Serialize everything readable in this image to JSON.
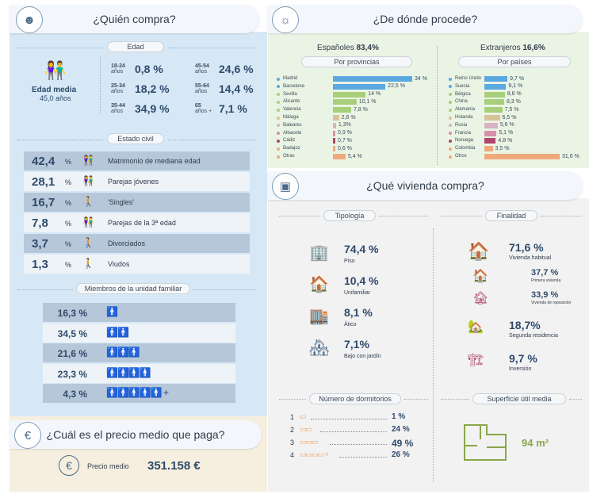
{
  "quien": {
    "title": "¿Quién compra?",
    "edad_tag": "Edad",
    "edad_media_label": "Edad media",
    "edad_media_value": "45,0 años",
    "edad_groups": [
      {
        "top": "18-24",
        "bottom": "años",
        "value": "0,8 %"
      },
      {
        "top": "25-34",
        "bottom": "años",
        "value": "18,2 %"
      },
      {
        "top": "35-44",
        "bottom": "años",
        "value": "34,9 %"
      },
      {
        "top": "45-54",
        "bottom": "años",
        "value": "24,6 %"
      },
      {
        "top": "55-64",
        "bottom": "años",
        "value": "14,4 %"
      },
      {
        "top": "65",
        "bottom": "años +",
        "value": "7,1 %"
      }
    ],
    "estado_tag": "Estado civil",
    "estado": [
      {
        "value": "42,4",
        "pct": "%",
        "label": "Matrimonio de mediana edad"
      },
      {
        "value": "28,1",
        "pct": "%",
        "label": "Parejas jóvenes"
      },
      {
        "value": "16,7",
        "pct": "%",
        "label": "'Singles'"
      },
      {
        "value": "7,8",
        "pct": "%",
        "label": "Parejas de la 3ª edad"
      },
      {
        "value": "3,7",
        "pct": "%",
        "label": "Divorciados"
      },
      {
        "value": "1,3",
        "pct": "%",
        "label": "Viudos"
      }
    ],
    "miembros_tag": "Miembros de la unidad familiar",
    "miembros": [
      {
        "value": "16,3 %",
        "people": "1"
      },
      {
        "value": "34,5 %",
        "people": "2"
      },
      {
        "value": "21,6 %",
        "people": "3"
      },
      {
        "value": "23,3 %",
        "people": "4"
      },
      {
        "value": "4,3 %",
        "people": "5+"
      }
    ]
  },
  "precio": {
    "title": "¿Cuál es el precio medio que paga?",
    "label": "Precio medio",
    "value": "351.158 €"
  },
  "procede": {
    "title": "¿De dónde procede?",
    "espanoles_label": "Españoles",
    "espanoles_value": "83,4%",
    "extranjeros_label": "Extranjeros",
    "extranjeros_value": "16,6%",
    "provincias_tag": "Por provincias",
    "paises_tag": "Por países",
    "provincias": [
      {
        "name": "Madrid",
        "value": "34 %",
        "num": 34,
        "color": "#5aa9e0"
      },
      {
        "name": "Barcelona",
        "value": "22,5 %",
        "num": 22.5,
        "color": "#5aa9e0"
      },
      {
        "name": "Sevilla",
        "value": "14 %",
        "num": 14,
        "color": "#a7cf7a"
      },
      {
        "name": "Alicante",
        "value": "10,1 %",
        "num": 10.1,
        "color": "#a7cf7a"
      },
      {
        "name": "Valencia",
        "value": "7,8 %",
        "num": 7.8,
        "color": "#a7cf7a"
      },
      {
        "name": "Málaga",
        "value": "2,6 %",
        "num": 2.6,
        "color": "#d7c39a"
      },
      {
        "name": "Baleares",
        "value": "1,3%",
        "num": 1.3,
        "color": "#d9b3c4"
      },
      {
        "name": "Albacete",
        "value": "0,9 %",
        "num": 0.9,
        "color": "#d98fa9"
      },
      {
        "name": "Cádiz",
        "value": "0,7 %",
        "num": 0.7,
        "color": "#b0456b"
      },
      {
        "name": "Badajoz",
        "value": "0,6 %",
        "num": 0.6,
        "color": "#f0a97a"
      },
      {
        "name": "Otras",
        "value": "5,4 %",
        "num": 5.4,
        "color": "#f0a97a"
      }
    ],
    "paises": [
      {
        "name": "Reino Unido",
        "value": "9,7 %",
        "num": 9.7,
        "color": "#5aa9e0"
      },
      {
        "name": "Suecia",
        "value": "9,1 %",
        "num": 9.1,
        "color": "#5aa9e0"
      },
      {
        "name": "Bélgica",
        "value": "8,6 %",
        "num": 8.6,
        "color": "#a7cf7a"
      },
      {
        "name": "China",
        "value": "8,3 %",
        "num": 8.3,
        "color": "#a7cf7a"
      },
      {
        "name": "Alemania",
        "value": "7,5 %",
        "num": 7.5,
        "color": "#a7cf7a"
      },
      {
        "name": "Holanda",
        "value": "6,5 %",
        "num": 6.5,
        "color": "#d7c39a"
      },
      {
        "name": "Rusia",
        "value": "5,6 %",
        "num": 5.6,
        "color": "#d9b3c4"
      },
      {
        "name": "Francia",
        "value": "5,1 %",
        "num": 5.1,
        "color": "#d98fa9"
      },
      {
        "name": "Noruega",
        "value": "4,8 %",
        "num": 4.8,
        "color": "#b0456b"
      },
      {
        "name": "Colombia",
        "value": "3,5 %",
        "num": 3.5,
        "color": "#f0a97a"
      },
      {
        "name": "Otros",
        "value": "31,6 %",
        "num": 31.6,
        "color": "#f0a97a"
      }
    ]
  },
  "vivienda": {
    "title": "¿Qué vivienda compra?",
    "tipologia_tag": "Tipología",
    "finalidad_tag": "Finalidad",
    "tipologia": [
      {
        "value": "74,4 %",
        "label": "Piso"
      },
      {
        "value": "10,4 %",
        "label": "Unifamiliar"
      },
      {
        "value": "8,1 %",
        "label": "Ático"
      },
      {
        "value": "7,1%",
        "label": "Bajo con jardín"
      }
    ],
    "finalidad": [
      {
        "value": "71,6 %",
        "label": "Vivienda habitual"
      },
      {
        "value": "37,7 %",
        "label": "Primera vivienda"
      },
      {
        "value": "33,9 %",
        "label": "Vivienda de reposición"
      },
      {
        "value": "18,7%",
        "label": "Segunda residencia"
      },
      {
        "value": "9,7 %",
        "label": "Inversión"
      }
    ],
    "dormitorios_tag": "Número de dormitorios",
    "dormitorios": [
      {
        "n": "1",
        "value": "1 %"
      },
      {
        "n": "2",
        "value": "24 %"
      },
      {
        "n": "3",
        "value": "49 %"
      },
      {
        "n": "4",
        "value": "26 %"
      }
    ],
    "superficie_tag": "Superficie útil media",
    "superficie_value": "94 m²"
  },
  "colors": {
    "blue_dark": "#2f4a6b",
    "green": "#6a8f3a",
    "orange": "#e07a3a"
  }
}
